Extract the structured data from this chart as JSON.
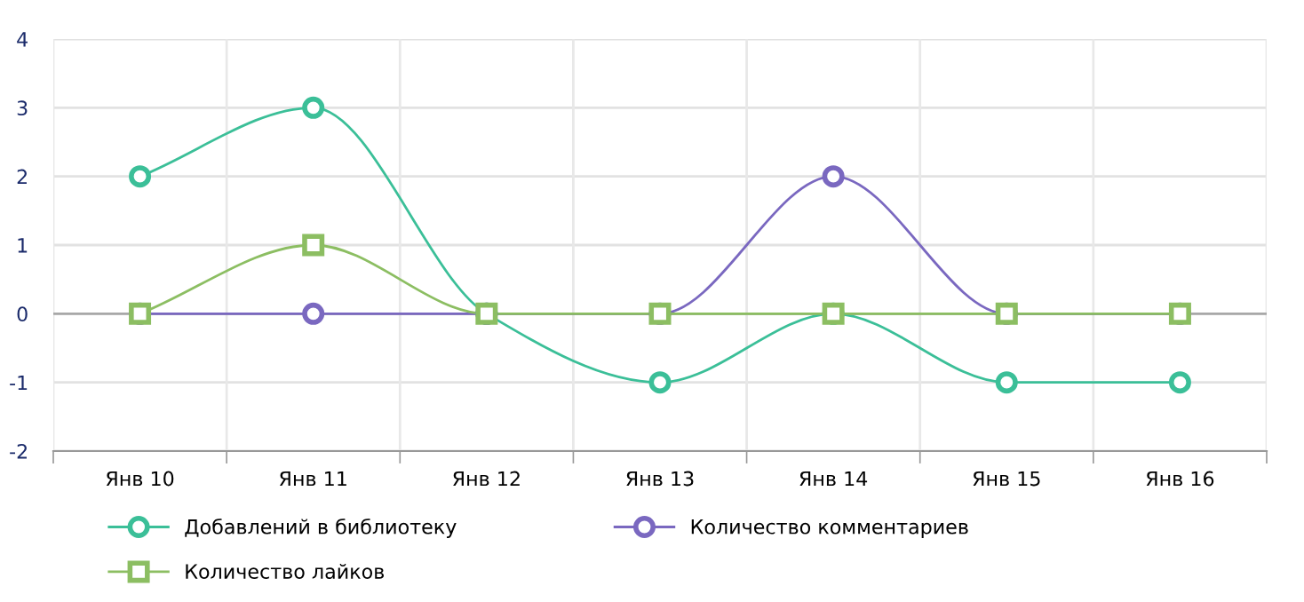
{
  "chart_data": {
    "type": "line",
    "categories": [
      "Янв 10",
      "Янв 11",
      "Янв 12",
      "Янв 13",
      "Янв 14",
      "Янв 15",
      "Янв 16"
    ],
    "series": [
      {
        "name": "Добавлений в библиотеку",
        "color": "#3bbf98",
        "marker": "circle",
        "values": [
          2,
          3,
          0,
          -1,
          0,
          -1,
          -1
        ]
      },
      {
        "name": "Количество комментариев",
        "color": "#7a68c0",
        "marker": "circle",
        "values": [
          0,
          0,
          0,
          0,
          2,
          0,
          0
        ]
      },
      {
        "name": "Количество лайков",
        "color": "#8cbe62",
        "marker": "square",
        "values": [
          0,
          1,
          0,
          0,
          0,
          0,
          0
        ]
      }
    ],
    "ylim": [
      -2,
      4
    ],
    "yticks": [
      -2,
      -1,
      0,
      1,
      2,
      3,
      4
    ],
    "grid": true,
    "legend": "bottom",
    "line_style": "solid"
  }
}
